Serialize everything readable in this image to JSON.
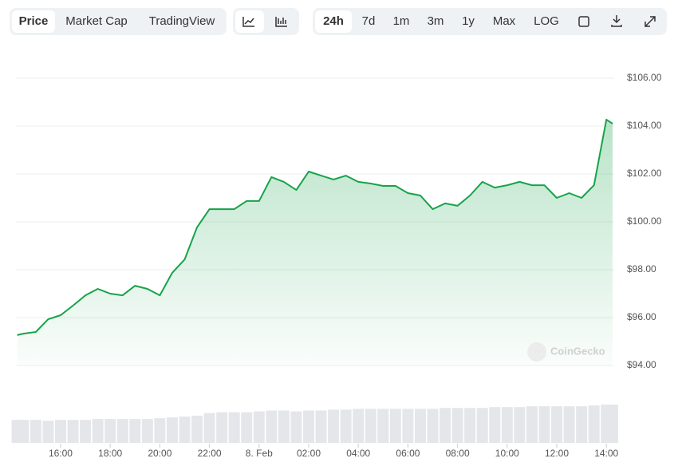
{
  "tabs": [
    "Price",
    "Market Cap",
    "TradingView"
  ],
  "ranges": [
    "24h",
    "7d",
    "1m",
    "3m",
    "1y",
    "Max",
    "LOG"
  ],
  "watermark": "CoinGecko",
  "chart_data": {
    "type": "line",
    "color": "#16a34a",
    "grid": true,
    "x": [
      -9.75,
      -9.5,
      -9,
      -8.5,
      -8,
      -7.5,
      -7,
      -6.5,
      -6,
      -5.5,
      -5,
      -4.5,
      -4,
      -3.5,
      -3,
      -2.5,
      -2,
      -1.5,
      -1,
      -0.5,
      0,
      0.5,
      1,
      1.5,
      2,
      2.5,
      3,
      3.5,
      4,
      4.5,
      5,
      5.5,
      6,
      6.5,
      7,
      7.5,
      8,
      8.5,
      9,
      9.5,
      10,
      10.5,
      11,
      11.5,
      12,
      12.5,
      13,
      13.5,
      14,
      14.25
    ],
    "values": [
      95.27,
      95.33,
      95.4,
      95.93,
      96.1,
      96.5,
      96.93,
      97.2,
      97.0,
      96.93,
      97.33,
      97.2,
      96.93,
      97.87,
      98.43,
      99.77,
      100.53,
      100.53,
      100.53,
      100.87,
      100.87,
      101.87,
      101.67,
      101.33,
      102.1,
      101.93,
      101.77,
      101.93,
      101.67,
      101.6,
      101.5,
      101.5,
      101.2,
      101.1,
      100.53,
      100.77,
      100.67,
      101.1,
      101.67,
      101.43,
      101.53,
      101.67,
      101.53,
      101.53,
      101.0,
      101.2,
      101.0,
      101.53,
      104.27,
      104.1
    ],
    "volume": [
      27,
      27,
      27,
      26,
      27,
      27,
      27,
      28,
      28,
      28,
      28,
      28,
      29,
      30,
      31,
      32,
      35,
      36,
      36,
      36,
      37,
      38,
      38,
      37,
      38,
      38,
      39,
      39,
      40,
      40,
      40,
      40,
      40,
      40,
      40,
      41,
      41,
      41,
      41,
      42,
      42,
      42,
      43,
      43,
      43,
      43,
      43,
      44,
      45,
      45
    ],
    "xlim": [
      -9.8,
      14.25
    ],
    "xticks": [
      {
        "value": -8,
        "label": "16:00"
      },
      {
        "value": -6,
        "label": "18:00"
      },
      {
        "value": -4,
        "label": "20:00"
      },
      {
        "value": -2,
        "label": "22:00"
      },
      {
        "value": 0,
        "label": "8. Feb"
      },
      {
        "value": 2,
        "label": "02:00"
      },
      {
        "value": 4,
        "label": "04:00"
      },
      {
        "value": 6,
        "label": "06:00"
      },
      {
        "value": 8,
        "label": "08:00"
      },
      {
        "value": 10,
        "label": "10:00"
      },
      {
        "value": 12,
        "label": "12:00"
      },
      {
        "value": 14,
        "label": "14:00"
      }
    ],
    "ylim": [
      94,
      106
    ],
    "yticks": [
      {
        "value": 94,
        "label": "$94.00"
      },
      {
        "value": 96,
        "label": "$96.00"
      },
      {
        "value": 98,
        "label": "$98.00"
      },
      {
        "value": 100,
        "label": "$100.00"
      },
      {
        "value": 102,
        "label": "$102.00"
      },
      {
        "value": 104,
        "label": "$104.00"
      },
      {
        "value": 106,
        "label": "$106.00"
      }
    ]
  }
}
